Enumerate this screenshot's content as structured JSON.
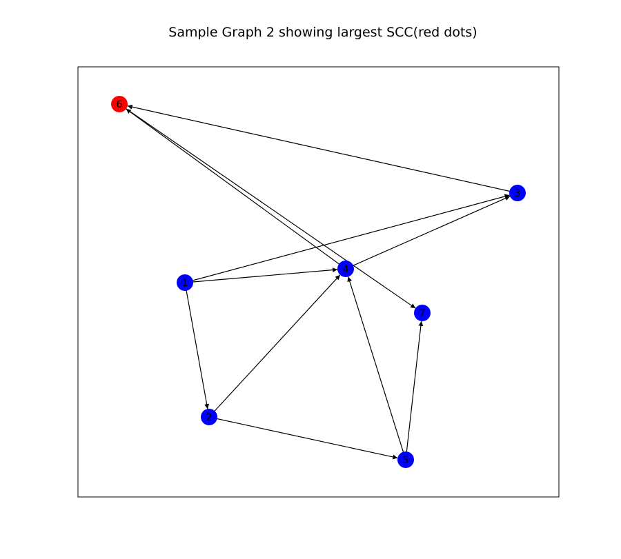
{
  "title": "Sample Graph 2 showing largest SCC(red dots)",
  "colors": {
    "scc": "#ff0000",
    "other": "#0000ff",
    "edge": "#000000",
    "frame": "#000000",
    "label": "#000000"
  },
  "nodes": [
    {
      "id": "1",
      "in_scc": false
    },
    {
      "id": "2",
      "in_scc": false
    },
    {
      "id": "3",
      "in_scc": false
    },
    {
      "id": "4",
      "in_scc": false
    },
    {
      "id": "5",
      "in_scc": false
    },
    {
      "id": "6",
      "in_scc": true
    },
    {
      "id": "7",
      "in_scc": false
    }
  ],
  "edges": [
    {
      "from": "1",
      "to": "2"
    },
    {
      "from": "1",
      "to": "3"
    },
    {
      "from": "1",
      "to": "4"
    },
    {
      "from": "2",
      "to": "4"
    },
    {
      "from": "2",
      "to": "5"
    },
    {
      "from": "3",
      "to": "6"
    },
    {
      "from": "4",
      "to": "3"
    },
    {
      "from": "4",
      "to": "6"
    },
    {
      "from": "5",
      "to": "4"
    },
    {
      "from": "5",
      "to": "7"
    },
    {
      "from": "6",
      "to": "7"
    }
  ]
}
